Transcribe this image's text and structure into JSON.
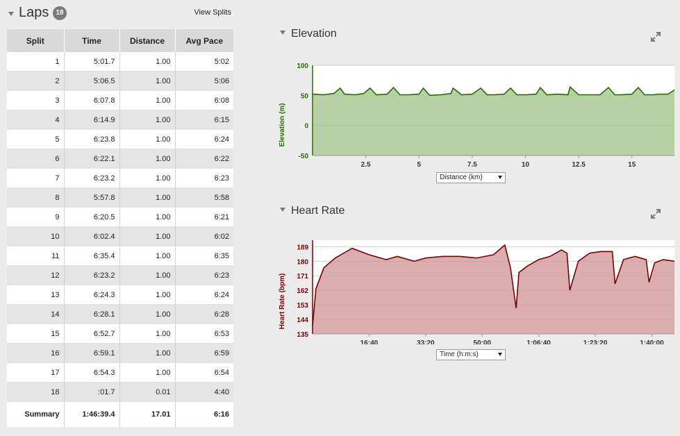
{
  "laps": {
    "title": "Laps",
    "count": "18",
    "view_splits": "View Splits",
    "columns": [
      "Split",
      "Time",
      "Distance",
      "Avg Pace"
    ],
    "rows": [
      [
        "1",
        "5:01.7",
        "1.00",
        "5:02"
      ],
      [
        "2",
        "5:06.5",
        "1.00",
        "5:06"
      ],
      [
        "3",
        "6:07.8",
        "1.00",
        "6:08"
      ],
      [
        "4",
        "6:14.9",
        "1.00",
        "6:15"
      ],
      [
        "5",
        "6:23.8",
        "1.00",
        "6:24"
      ],
      [
        "6",
        "6:22.1",
        "1.00",
        "6:22"
      ],
      [
        "7",
        "6:23.2",
        "1.00",
        "6:23"
      ],
      [
        "8",
        "5:57.8",
        "1.00",
        "5:58"
      ],
      [
        "9",
        "6:20.5",
        "1.00",
        "6:21"
      ],
      [
        "10",
        "6:02.4",
        "1.00",
        "6:02"
      ],
      [
        "11",
        "6:35.4",
        "1.00",
        "6:35"
      ],
      [
        "12",
        "6:23.2",
        "1.00",
        "6:23"
      ],
      [
        "13",
        "6:24.3",
        "1.00",
        "6:24"
      ],
      [
        "14",
        "6:28.1",
        "1.00",
        "6:28"
      ],
      [
        "15",
        "6:52.7",
        "1.00",
        "6:53"
      ],
      [
        "16",
        "6:59.1",
        "1.00",
        "6:59"
      ],
      [
        "17",
        "6:54.3",
        "1.00",
        "6:54"
      ],
      [
        "18",
        ":01.7",
        "0.01",
        "4:40"
      ]
    ],
    "summary": [
      "Summary",
      "1:46:39.4",
      "17.01",
      "6:16"
    ]
  },
  "elevation": {
    "title": "Elevation",
    "dropdown_value": "Distance (km)",
    "icon": "expand-icon",
    "chart_data": {
      "type": "area",
      "ylabel": "Elevation (m)",
      "ylim": [
        -50,
        100
      ],
      "yticks": [
        "100",
        "50",
        "0",
        "-50"
      ],
      "xlim": [
        0,
        17
      ],
      "xticks": [
        "2.5",
        "5",
        "7.5",
        "10",
        "12.5",
        "15"
      ],
      "grid": true,
      "color": "#2a6a00",
      "fill": "#a9c993",
      "x": [
        0,
        0.5,
        1.0,
        1.3,
        1.5,
        2.0,
        2.4,
        2.7,
        3.0,
        3.5,
        3.8,
        4.1,
        4.5,
        5.0,
        5.2,
        5.5,
        6.0,
        6.5,
        6.6,
        7.0,
        7.5,
        7.9,
        8.2,
        8.5,
        9.0,
        9.3,
        9.6,
        10.0,
        10.5,
        10.7,
        11.0,
        11.5,
        12.0,
        12.1,
        12.5,
        13.0,
        13.5,
        13.9,
        14.2,
        14.5,
        15.0,
        15.3,
        15.6,
        16.0,
        16.3,
        16.7,
        17.0
      ],
      "y": [
        52,
        51,
        53,
        62,
        52,
        51,
        53,
        62,
        51,
        52,
        63,
        51,
        51,
        52,
        62,
        50,
        51,
        53,
        62,
        51,
        52,
        62,
        51,
        51,
        52,
        62,
        51,
        51,
        52,
        63,
        51,
        52,
        51,
        64,
        51,
        51,
        51,
        63,
        51,
        51,
        52,
        63,
        51,
        51,
        52,
        52,
        59
      ]
    }
  },
  "heart_rate": {
    "title": "Heart Rate",
    "dropdown_value": "Time (h:m:s)",
    "icon": "expand-icon",
    "chart_data": {
      "type": "area",
      "ylabel": "Heart Rate (bpm)",
      "ylim": [
        135,
        193
      ],
      "yticks": [
        "189",
        "180",
        "171",
        "162",
        "153",
        "144",
        "135"
      ],
      "xticks": [
        "16:40",
        "33:20",
        "50:00",
        "1:06:40",
        "1:23:20",
        "1:40:00"
      ],
      "xlim": [
        0,
        6400
      ],
      "grid": true,
      "color": "#7a0000",
      "fill": "#d4a0a0",
      "x": [
        0,
        60,
        200,
        400,
        700,
        1000,
        1300,
        1500,
        1800,
        2000,
        2300,
        2600,
        2900,
        3200,
        3400,
        3500,
        3600,
        3650,
        3800,
        4000,
        4200,
        4400,
        4500,
        4550,
        4700,
        4900,
        5100,
        5300,
        5350,
        5500,
        5700,
        5900,
        5950,
        6050,
        6200,
        6400
      ],
      "y": [
        140,
        163,
        176,
        182,
        188,
        184,
        181,
        183,
        180,
        182,
        183,
        183,
        182,
        184,
        190,
        176,
        151,
        173,
        177,
        181,
        183,
        187,
        185,
        162,
        180,
        185,
        186,
        186,
        166,
        181,
        183,
        181,
        167,
        179,
        181,
        180
      ]
    }
  }
}
